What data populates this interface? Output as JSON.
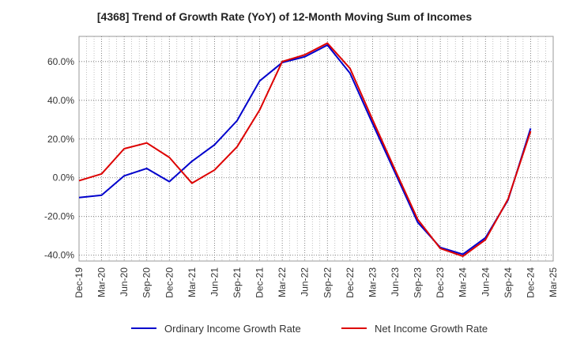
{
  "chart_data": {
    "type": "line",
    "title": "[4368]  Trend of Growth Rate (YoY) of 12-Month Moving Sum of Incomes",
    "xlabel": "",
    "ylabel": "",
    "ylim": [
      -43,
      73
    ],
    "yticks": [
      -40,
      -20,
      0,
      20,
      40,
      60
    ],
    "ytick_labels": [
      "-40.0%",
      "-20.0%",
      "0.0%",
      "20.0%",
      "40.0%",
      "60.0%"
    ],
    "x": [
      "Dec-19",
      "Mar-20",
      "Jun-20",
      "Sep-20",
      "Dec-20",
      "Mar-21",
      "Jun-21",
      "Sep-21",
      "Dec-21",
      "Mar-22",
      "Jun-22",
      "Sep-22",
      "Dec-22",
      "Mar-23",
      "Jun-23",
      "Sep-23",
      "Dec-23",
      "Mar-24",
      "Jun-24",
      "Sep-24",
      "Dec-24",
      "Mar-25"
    ],
    "grid": true,
    "legend_position": "bottom",
    "series": [
      {
        "name": "Ordinary Income Growth Rate",
        "color": "#0000cc",
        "values": [
          -10.2,
          -9.0,
          1.0,
          4.8,
          -2.0,
          8.5,
          17.0,
          29.5,
          50.0,
          59.5,
          62.5,
          68.5,
          54.0,
          28.0,
          2.5,
          -23.0,
          -36.0,
          -39.5,
          -31.0,
          -11.5,
          25.5,
          null
        ]
      },
      {
        "name": "Net Income Growth Rate",
        "color": "#dd0000",
        "values": [
          -1.5,
          2.0,
          15.0,
          18.0,
          10.5,
          -2.8,
          4.0,
          16.0,
          35.0,
          60.0,
          63.5,
          69.5,
          56.5,
          30.0,
          4.0,
          -21.5,
          -36.5,
          -40.5,
          -32.0,
          -11.0,
          24.0,
          null
        ]
      }
    ]
  }
}
